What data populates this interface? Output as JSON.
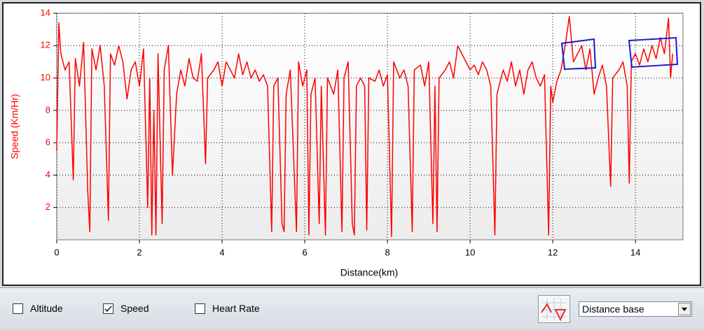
{
  "chart_data": {
    "type": "line",
    "x_label": "Distance(km)",
    "y_label": "Speed (Km/Hr)",
    "color": "#ff0000",
    "grid": true,
    "xlim": [
      0,
      15.15
    ],
    "ylim": [
      0,
      14
    ],
    "xticks": [
      0,
      2,
      4,
      6,
      8,
      10,
      12,
      14
    ],
    "yticks": [
      2,
      4,
      6,
      8,
      10,
      12,
      14
    ],
    "x": [
      0,
      0.05,
      0.1,
      0.2,
      0.3,
      0.4,
      0.45,
      0.55,
      0.65,
      0.75,
      0.8,
      0.85,
      0.95,
      1.05,
      1.15,
      1.25,
      1.3,
      1.4,
      1.5,
      1.6,
      1.7,
      1.8,
      1.9,
      2.0,
      2.1,
      2.2,
      2.25,
      2.3,
      2.35,
      2.4,
      2.45,
      2.55,
      2.6,
      2.7,
      2.8,
      2.9,
      3.0,
      3.1,
      3.2,
      3.3,
      3.4,
      3.5,
      3.6,
      3.65,
      3.8,
      3.9,
      4.0,
      4.1,
      4.2,
      4.3,
      4.4,
      4.5,
      4.6,
      4.7,
      4.8,
      4.9,
      5.0,
      5.1,
      5.2,
      5.25,
      5.35,
      5.45,
      5.5,
      5.55,
      5.65,
      5.8,
      5.85,
      5.95,
      6.05,
      6.1,
      6.15,
      6.25,
      6.35,
      6.4,
      6.5,
      6.55,
      6.7,
      6.8,
      6.9,
      6.95,
      7.05,
      7.15,
      7.2,
      7.25,
      7.35,
      7.45,
      7.5,
      7.55,
      7.7,
      7.8,
      7.9,
      8.0,
      8.1,
      8.15,
      8.3,
      8.4,
      8.5,
      8.6,
      8.65,
      8.8,
      8.9,
      9.0,
      9.1,
      9.15,
      9.2,
      9.25,
      9.4,
      9.5,
      9.6,
      9.7,
      9.8,
      9.9,
      10.0,
      10.1,
      10.2,
      10.3,
      10.4,
      10.5,
      10.6,
      10.65,
      10.8,
      10.9,
      11.0,
      11.1,
      11.2,
      11.3,
      11.4,
      11.5,
      11.6,
      11.7,
      11.8,
      11.9,
      11.95,
      12.0,
      12.1,
      12.2,
      12.3,
      12.4,
      12.5,
      12.6,
      12.7,
      12.8,
      12.9,
      13.0,
      13.1,
      13.2,
      13.3,
      13.4,
      13.45,
      13.6,
      13.7,
      13.8,
      13.85,
      13.9,
      14.0,
      14.1,
      14.2,
      14.3,
      14.4,
      14.5,
      14.6,
      14.7,
      14.8,
      14.85,
      14.9
    ],
    "values": [
      5.5,
      13.4,
      11.5,
      10.5,
      11,
      3.7,
      11.2,
      9.5,
      12.2,
      3,
      0.5,
      11.8,
      10.5,
      12,
      9.5,
      1.2,
      11.5,
      10.8,
      12,
      11,
      8.7,
      10.5,
      11,
      9.5,
      11.8,
      2,
      10,
      0.3,
      8,
      0.3,
      11.5,
      1,
      10.5,
      12,
      4,
      9,
      10.5,
      9.5,
      11.2,
      10,
      9.8,
      11.5,
      4.7,
      10,
      10.5,
      11,
      9.5,
      11,
      10.5,
      10,
      11.5,
      10.2,
      11,
      10,
      10.5,
      9.8,
      10.2,
      9.5,
      0.5,
      9.5,
      10,
      1,
      0.5,
      9,
      10.5,
      0.5,
      11,
      9.5,
      10.5,
      0.3,
      9,
      10,
      1,
      9.5,
      0.3,
      10,
      9,
      10.5,
      0.5,
      10,
      11,
      1,
      0.3,
      9.5,
      10,
      9.5,
      0.6,
      10,
      9.8,
      10.5,
      9.5,
      10.2,
      0.2,
      11,
      10,
      10.5,
      9.5,
      0.5,
      10.5,
      10.8,
      9.5,
      11,
      1,
      9.5,
      0.5,
      10,
      10.5,
      11,
      10,
      12,
      11.5,
      11,
      10.5,
      10.8,
      10.2,
      11,
      10.5,
      9.5,
      0.3,
      9,
      10.5,
      9.8,
      11,
      9.5,
      10.5,
      9,
      10.5,
      11,
      10,
      9.5,
      10.2,
      0.3,
      9.5,
      8.5,
      9.8,
      10.5,
      12,
      13.8,
      11,
      11.5,
      12,
      10.5,
      11.8,
      9,
      10,
      10.8,
      9.5,
      3.3,
      10,
      10.5,
      11,
      9.5,
      3.5,
      11,
      11.5,
      10.8,
      11.8,
      11,
      12,
      11.2,
      12.5,
      11.5,
      13.7,
      10,
      11.5
    ]
  },
  "controls": {
    "checkboxes": [
      {
        "label": "Altitude",
        "checked": false
      },
      {
        "label": "Speed",
        "checked": true
      },
      {
        "label": "Heart Rate",
        "checked": false
      }
    ],
    "dropdown": "Distance base"
  }
}
